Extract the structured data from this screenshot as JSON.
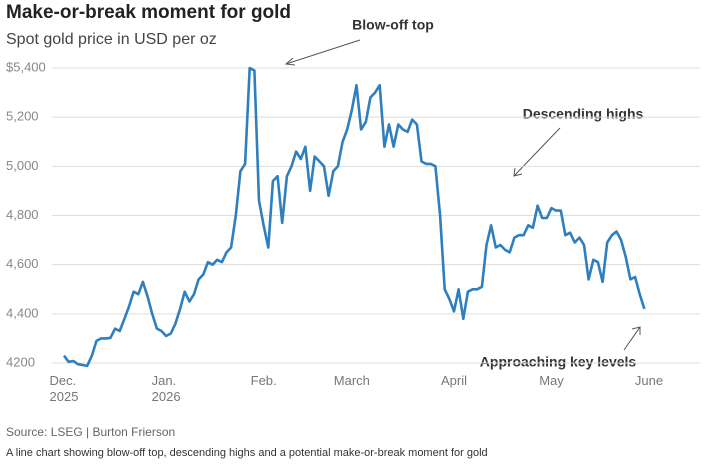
{
  "chart_data": {
    "type": "line",
    "title": "Make-or-break moment for gold",
    "subtitle": "Spot gold price in USD per oz",
    "categories": [
      "Dec.\n2025",
      null,
      null,
      null,
      null,
      null,
      null,
      null,
      null,
      null,
      null,
      null,
      null,
      null,
      null,
      null,
      null,
      null,
      null,
      null,
      null,
      null,
      "Jan.\n2026",
      null,
      null,
      null,
      null,
      null,
      null,
      null,
      null,
      null,
      null,
      null,
      null,
      null,
      null,
      null,
      null,
      null,
      null,
      null,
      null,
      "Feb.",
      null,
      null,
      null,
      null,
      null,
      null,
      null,
      null,
      null,
      null,
      null,
      null,
      null,
      null,
      null,
      null,
      null,
      null,
      "March",
      null,
      null,
      null,
      null,
      null,
      null,
      null,
      null,
      null,
      null,
      null,
      null,
      null,
      null,
      null,
      null,
      null,
      null,
      null,
      null,
      null,
      "April",
      null,
      null,
      null,
      null,
      null,
      null,
      null,
      null,
      null,
      null,
      null,
      null,
      null,
      null,
      null,
      null,
      null,
      null,
      null,
      null,
      "May",
      null,
      null,
      null,
      null,
      null,
      null,
      null,
      null,
      null,
      null,
      null,
      null,
      null,
      null,
      null,
      null,
      null,
      null,
      null,
      null,
      "June"
    ],
    "series": [
      {
        "name": "Spot gold",
        "color": "#2f7fbf",
        "values": [
          4230,
          4205,
          4208,
          4195,
          4192,
          4188,
          4230,
          4290,
          4300,
          4300,
          4302,
          4340,
          4330,
          4380,
          4430,
          4490,
          4480,
          4530,
          4470,
          4400,
          4340,
          4330,
          4310,
          4320,
          4360,
          4420,
          4490,
          4450,
          4480,
          4540,
          4560,
          4610,
          4600,
          4620,
          4610,
          4650,
          4670,
          4800,
          4980,
          5010,
          5400,
          5390,
          4860,
          4760,
          4670,
          4940,
          4960,
          4770,
          4960,
          5000,
          5060,
          5030,
          5080,
          4900,
          5040,
          5020,
          5000,
          4880,
          4980,
          5000,
          5100,
          5150,
          5230,
          5330,
          5150,
          5180,
          5280,
          5300,
          5330,
          5080,
          5170,
          5080,
          5170,
          5150,
          5140,
          5190,
          5170,
          5020,
          5010,
          5010,
          5000,
          4800,
          4500,
          4460,
          4410,
          4500,
          4380,
          4490,
          4500,
          4500,
          4510,
          4680,
          4760,
          4670,
          4680,
          4660,
          4650,
          4710,
          4720,
          4720,
          4760,
          4750,
          4840,
          4790,
          4790,
          4830,
          4820,
          4820,
          4720,
          4730,
          4690,
          4710,
          4680,
          4540,
          4620,
          4610,
          4530,
          4690,
          4720,
          4735,
          4700,
          4630,
          4540,
          4550,
          4480,
          4420,
          null
        ]
      }
    ],
    "ylim": [
      4200,
      5400
    ],
    "yticks": [
      4200,
      {
        "value": 4400,
        "label": "4,400"
      },
      {
        "value": 4600,
        "label": "4,600"
      },
      {
        "value": 4800,
        "label": "4,800"
      },
      {
        "value": 5000,
        "label": "5,000"
      },
      {
        "value": 5200,
        "label": "5,200"
      },
      {
        "value": 5400,
        "label": "$5,400"
      }
    ],
    "grid": true,
    "annotations": [
      "Blow-off top",
      "Descending highs",
      "Approaching key levels"
    ],
    "source": "Source: LSEG | Burton Frierson",
    "caption": "A line chart showing blow-off top, descending highs and a potential make-or-break moment for gold"
  }
}
